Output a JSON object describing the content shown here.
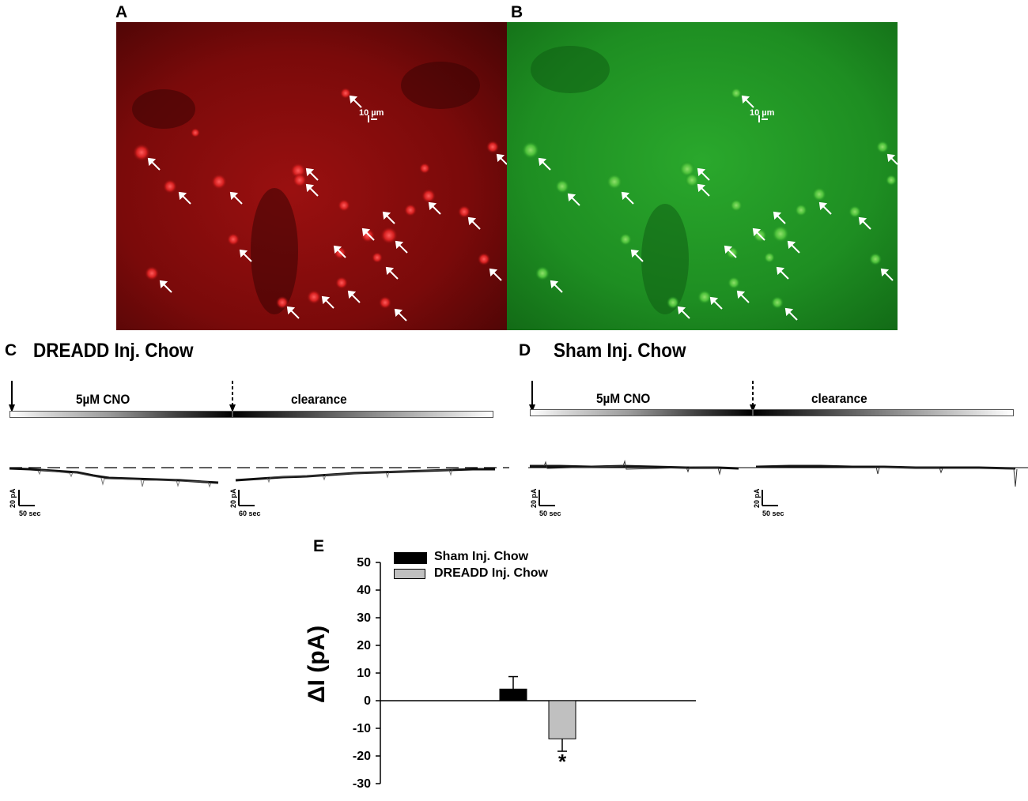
{
  "panels": {
    "a": {
      "letter": "A",
      "scale_label": "10 µm"
    },
    "b": {
      "letter": "B",
      "scale_label": "10 µm"
    },
    "c": {
      "letter": "C",
      "title": "DREADD Inj. Chow",
      "cno_label": "5µM CNO",
      "clearance_label": "clearance",
      "scale1": {
        "current": "20 pA",
        "time": "50 sec"
      },
      "scale2": {
        "current": "20 pA",
        "time": "60 sec"
      }
    },
    "d": {
      "letter": "D",
      "title": "Sham Inj. Chow",
      "cno_label": "5µM CNO",
      "clearance_label": "clearance",
      "scale1": {
        "current": "20 pA",
        "time": "50 sec"
      },
      "scale2": {
        "current": "20 pA",
        "time": "50 sec"
      }
    },
    "e": {
      "letter": "E"
    }
  },
  "colors": {
    "red_channel": "#b01010",
    "green_channel": "#1f9a22",
    "sham_bar": "#000000",
    "dreadd_bar": "#c0c0c0"
  },
  "chart_data": {
    "type": "bar",
    "categories": [
      "Sham Inj. Chow",
      "DREADD Inj. Chow"
    ],
    "series": [
      {
        "name": "Sham Inj. Chow",
        "value": 4.2,
        "error": 4.5,
        "color": "#000000"
      },
      {
        "name": "DREADD Inj. Chow",
        "value": -13.8,
        "error": 4.5,
        "color": "#c0c0c0",
        "annotation": "*"
      }
    ],
    "ylabel": "ΔI (pA)",
    "ylim": [
      -30,
      50
    ],
    "yticks": [
      "50",
      "40",
      "30",
      "20",
      "10",
      "0",
      "-10",
      "-20",
      "-30"
    ],
    "legend_position": "top",
    "grid": false
  }
}
